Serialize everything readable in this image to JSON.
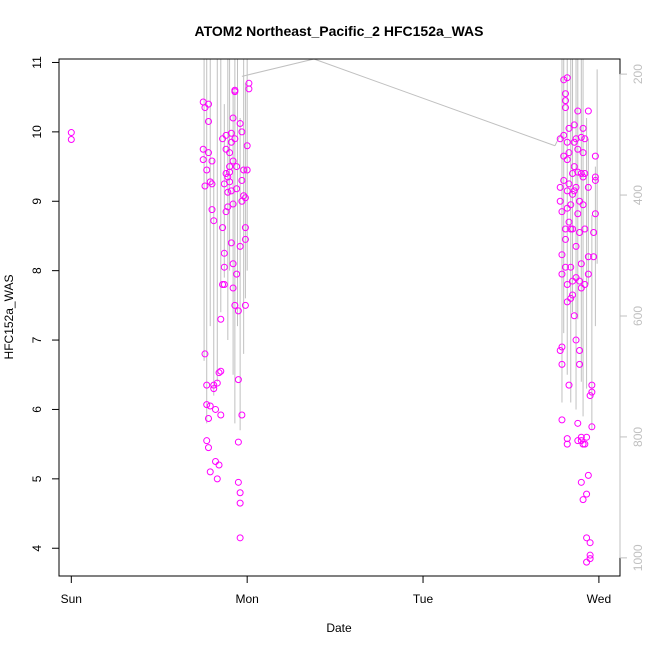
{
  "chart_data": {
    "type": "scatter",
    "title": "ATOM2 Northeast_Pacific_2 HFC152a_WAS",
    "xlabel": "Date",
    "ylabel": "HFC152a_WAS",
    "x_axis": {
      "unit": "days since Sun 00:00",
      "range": [
        -0.07,
        3.12
      ],
      "ticks": [
        {
          "value": 0,
          "label": "Sun"
        },
        {
          "value": 1,
          "label": "Mon"
        },
        {
          "value": 2,
          "label": "Tue"
        },
        {
          "value": 3,
          "label": "Wed"
        }
      ]
    },
    "y_axis": {
      "range": [
        3.6,
        11.05
      ],
      "ticks": [
        4,
        5,
        6,
        7,
        8,
        9,
        10,
        11
      ]
    },
    "y2_axis": {
      "range": [
        1030,
        175
      ],
      "ticks": [
        200,
        400,
        600,
        800,
        1000
      ],
      "color": "#c0c0c0"
    },
    "points_color": "#ff00ff",
    "line_color": "#c0c0c0",
    "grid": false,
    "legend": "none",
    "series": [
      {
        "points": [
          [
            0.0,
            9.99
          ],
          [
            0.0,
            9.89
          ],
          [
            0.75,
            9.75
          ],
          [
            0.75,
            9.6
          ],
          [
            0.76,
            9.22
          ],
          [
            0.75,
            10.43
          ],
          [
            0.76,
            10.35
          ],
          [
            0.77,
            9.45
          ],
          [
            0.78,
            10.4
          ],
          [
            0.78,
            9.7
          ],
          [
            0.78,
            10.15
          ],
          [
            0.79,
            9.28
          ],
          [
            0.8,
            9.58
          ],
          [
            0.8,
            9.25
          ],
          [
            0.81,
            8.72
          ],
          [
            0.8,
            8.88
          ],
          [
            0.76,
            6.8
          ],
          [
            0.77,
            6.35
          ],
          [
            0.77,
            6.07
          ],
          [
            0.78,
            5.87
          ],
          [
            0.79,
            6.05
          ],
          [
            0.77,
            5.55
          ],
          [
            0.78,
            5.45
          ],
          [
            0.79,
            5.1
          ],
          [
            0.81,
            6.35
          ],
          [
            0.81,
            6.3
          ],
          [
            0.82,
            6.0
          ],
          [
            0.82,
            5.25
          ],
          [
            0.83,
            5.0
          ],
          [
            0.84,
            5.2
          ],
          [
            0.83,
            6.38
          ],
          [
            0.84,
            6.53
          ],
          [
            0.85,
            6.55
          ],
          [
            0.85,
            5.92
          ],
          [
            0.85,
            7.3
          ],
          [
            0.86,
            7.8
          ],
          [
            0.87,
            8.05
          ],
          [
            0.87,
            8.25
          ],
          [
            0.86,
            8.62
          ],
          [
            0.88,
            8.85
          ],
          [
            0.86,
            9.9
          ],
          [
            0.87,
            9.25
          ],
          [
            0.88,
            9.4
          ],
          [
            0.89,
            9.13
          ],
          [
            0.89,
            8.92
          ],
          [
            0.88,
            9.95
          ],
          [
            0.89,
            9.35
          ],
          [
            0.9,
            9.7
          ],
          [
            0.9,
            9.5
          ],
          [
            0.9,
            9.42
          ],
          [
            0.91,
            9.85
          ],
          [
            0.91,
            9.98
          ],
          [
            0.91,
            9.15
          ],
          [
            0.92,
            8.96
          ],
          [
            0.92,
            9.58
          ],
          [
            0.92,
            10.2
          ],
          [
            0.93,
            10.58
          ],
          [
            0.93,
            10.6
          ],
          [
            0.93,
            9.9
          ],
          [
            0.94,
            9.5
          ],
          [
            0.94,
            9.18
          ],
          [
            0.92,
            8.1
          ],
          [
            0.92,
            7.75
          ],
          [
            0.93,
            7.5
          ],
          [
            0.91,
            8.4
          ],
          [
            0.94,
            7.95
          ],
          [
            0.95,
            7.42
          ],
          [
            0.95,
            6.43
          ],
          [
            0.95,
            5.53
          ],
          [
            0.95,
            4.95
          ],
          [
            0.96,
            4.8
          ],
          [
            0.96,
            4.65
          ],
          [
            0.96,
            4.15
          ],
          [
            0.97,
            5.92
          ],
          [
            0.96,
            8.35
          ],
          [
            0.97,
            9.0
          ],
          [
            0.97,
            9.3
          ],
          [
            0.98,
            9.08
          ],
          [
            0.98,
            9.45
          ],
          [
            0.99,
            9.05
          ],
          [
            0.99,
            8.62
          ],
          [
            0.99,
            8.45
          ],
          [
            0.99,
            7.5
          ],
          [
            1.0,
            9.8
          ],
          [
            1.0,
            9.45
          ],
          [
            1.01,
            10.7
          ],
          [
            1.01,
            10.62
          ],
          [
            0.97,
            10.0
          ],
          [
            0.96,
            10.12
          ],
          [
            0.9,
            9.28
          ],
          [
            0.88,
            9.75
          ],
          [
            0.87,
            7.8
          ],
          [
            2.78,
            9.9
          ],
          [
            2.78,
            9.2
          ],
          [
            2.78,
            9.0
          ],
          [
            2.79,
            8.85
          ],
          [
            2.79,
            8.23
          ],
          [
            2.79,
            7.95
          ],
          [
            2.79,
            6.9
          ],
          [
            2.78,
            6.85
          ],
          [
            2.79,
            6.65
          ],
          [
            2.79,
            5.85
          ],
          [
            2.8,
            9.3
          ],
          [
            2.8,
            9.65
          ],
          [
            2.8,
            9.95
          ],
          [
            2.81,
            10.35
          ],
          [
            2.81,
            10.55
          ],
          [
            2.81,
            10.45
          ],
          [
            2.8,
            10.75
          ],
          [
            2.82,
            10.78
          ],
          [
            2.82,
            9.85
          ],
          [
            2.82,
            9.6
          ],
          [
            2.82,
            9.15
          ],
          [
            2.82,
            8.9
          ],
          [
            2.81,
            8.6
          ],
          [
            2.81,
            8.45
          ],
          [
            2.82,
            7.8
          ],
          [
            2.82,
            7.55
          ],
          [
            2.83,
            6.35
          ],
          [
            2.82,
            5.58
          ],
          [
            2.82,
            5.5
          ],
          [
            2.83,
            10.05
          ],
          [
            2.83,
            9.7
          ],
          [
            2.83,
            9.25
          ],
          [
            2.84,
            8.95
          ],
          [
            2.84,
            8.6
          ],
          [
            2.84,
            8.05
          ],
          [
            2.84,
            7.6
          ],
          [
            2.85,
            9.4
          ],
          [
            2.85,
            9.1
          ],
          [
            2.85,
            8.6
          ],
          [
            2.85,
            7.85
          ],
          [
            2.85,
            7.65
          ],
          [
            2.86,
            7.35
          ],
          [
            2.86,
            10.1
          ],
          [
            2.86,
            9.85
          ],
          [
            2.86,
            9.5
          ],
          [
            2.87,
            9.2
          ],
          [
            2.87,
            8.35
          ],
          [
            2.87,
            7.9
          ],
          [
            2.87,
            7.0
          ],
          [
            2.88,
            10.3
          ],
          [
            2.88,
            9.75
          ],
          [
            2.88,
            9.42
          ],
          [
            2.88,
            8.82
          ],
          [
            2.88,
            5.55
          ],
          [
            2.88,
            5.8
          ],
          [
            2.89,
            9.0
          ],
          [
            2.89,
            8.55
          ],
          [
            2.89,
            7.85
          ],
          [
            2.89,
            6.65
          ],
          [
            2.89,
            6.85
          ],
          [
            2.9,
            9.92
          ],
          [
            2.9,
            9.4
          ],
          [
            2.9,
            8.1
          ],
          [
            2.9,
            7.75
          ],
          [
            2.9,
            4.95
          ],
          [
            2.9,
            5.6
          ],
          [
            2.91,
            10.05
          ],
          [
            2.91,
            9.7
          ],
          [
            2.91,
            9.35
          ],
          [
            2.91,
            8.95
          ],
          [
            2.91,
            4.7
          ],
          [
            2.91,
            5.5
          ],
          [
            2.92,
            9.9
          ],
          [
            2.92,
            9.4
          ],
          [
            2.92,
            8.6
          ],
          [
            2.92,
            7.8
          ],
          [
            2.92,
            5.5
          ],
          [
            2.93,
            4.78
          ],
          [
            2.93,
            5.6
          ],
          [
            2.93,
            4.15
          ],
          [
            2.93,
            3.8
          ],
          [
            2.94,
            10.3
          ],
          [
            2.94,
            9.2
          ],
          [
            2.94,
            8.2
          ],
          [
            2.94,
            7.95
          ],
          [
            2.94,
            5.05
          ],
          [
            2.95,
            3.85
          ],
          [
            2.95,
            3.9
          ],
          [
            2.95,
            4.08
          ],
          [
            2.95,
            6.2
          ],
          [
            2.96,
            6.35
          ],
          [
            2.96,
            6.25
          ],
          [
            2.96,
            5.75
          ],
          [
            2.97,
            8.55
          ],
          [
            2.97,
            8.2
          ],
          [
            2.98,
            8.82
          ],
          [
            2.98,
            9.35
          ],
          [
            2.98,
            9.65
          ],
          [
            2.98,
            9.3
          ],
          [
            2.81,
            8.05
          ],
          [
            2.83,
            8.7
          ],
          [
            2.86,
            9.15
          ],
          [
            2.87,
            9.9
          ],
          [
            2.9,
            5.55
          ]
        ]
      }
    ],
    "secondary_line": {
      "segments": [
        [
          [
            0.755,
            11.1
          ],
          [
            0.755,
            6.7
          ]
        ],
        [
          [
            0.77,
            11.1
          ],
          [
            0.77,
            5.8
          ]
        ],
        [
          [
            0.79,
            11.1
          ],
          [
            0.79,
            7.2
          ]
        ],
        [
          [
            0.81,
            9.6
          ],
          [
            0.81,
            6.2
          ]
        ],
        [
          [
            0.83,
            11.1
          ],
          [
            0.83,
            6.4
          ]
        ],
        [
          [
            0.85,
            11.1
          ],
          [
            0.85,
            7.4
          ]
        ],
        [
          [
            0.87,
            10.4
          ],
          [
            0.87,
            7.9
          ]
        ],
        [
          [
            0.89,
            11.1
          ],
          [
            0.89,
            7.0
          ]
        ],
        [
          [
            0.9,
            11.1
          ],
          [
            0.9,
            8.0
          ]
        ],
        [
          [
            0.92,
            10.6
          ],
          [
            0.92,
            6.5
          ]
        ],
        [
          [
            0.93,
            11.1
          ],
          [
            0.93,
            5.8
          ]
        ],
        [
          [
            0.945,
            11.1
          ],
          [
            0.945,
            7.2
          ]
        ],
        [
          [
            0.96,
            10.2
          ],
          [
            0.96,
            5.7
          ]
        ],
        [
          [
            0.98,
            11.1
          ],
          [
            0.98,
            6.8
          ]
        ],
        [
          [
            0.99,
            10.7
          ],
          [
            0.99,
            7.6
          ]
        ],
        [
          [
            1.0,
            11.1
          ],
          [
            1.0,
            8.0
          ]
        ],
        [
          [
            0.97,
            10.8
          ],
          [
            1.38,
            11.05
          ]
        ],
        [
          [
            1.38,
            11.05
          ],
          [
            2.75,
            9.8
          ]
        ],
        [
          [
            2.75,
            9.8
          ],
          [
            2.78,
            9.95
          ]
        ],
        [
          [
            2.79,
            11.1
          ],
          [
            2.79,
            6.1
          ]
        ],
        [
          [
            2.8,
            11.1
          ],
          [
            2.8,
            7.1
          ]
        ],
        [
          [
            2.82,
            11.1
          ],
          [
            2.82,
            6.5
          ]
        ],
        [
          [
            2.84,
            11.1
          ],
          [
            2.84,
            6.1
          ]
        ],
        [
          [
            2.85,
            11.1
          ],
          [
            2.85,
            7.4
          ]
        ],
        [
          [
            2.87,
            11.1
          ],
          [
            2.87,
            6.0
          ]
        ],
        [
          [
            2.88,
            11.1
          ],
          [
            2.88,
            7.3
          ]
        ],
        [
          [
            2.9,
            11.1
          ],
          [
            2.9,
            6.4
          ]
        ],
        [
          [
            2.91,
            11.1
          ],
          [
            2.91,
            5.9
          ]
        ],
        [
          [
            2.93,
            10.2
          ],
          [
            2.93,
            6.3
          ]
        ],
        [
          [
            2.94,
            9.9
          ],
          [
            2.94,
            7.8
          ]
        ],
        [
          [
            2.96,
            8.8
          ],
          [
            2.96,
            5.7
          ]
        ],
        [
          [
            2.98,
            9.5
          ],
          [
            2.98,
            7.2
          ]
        ],
        [
          [
            2.99,
            10.9
          ],
          [
            2.99,
            8.1
          ]
        ]
      ]
    }
  }
}
